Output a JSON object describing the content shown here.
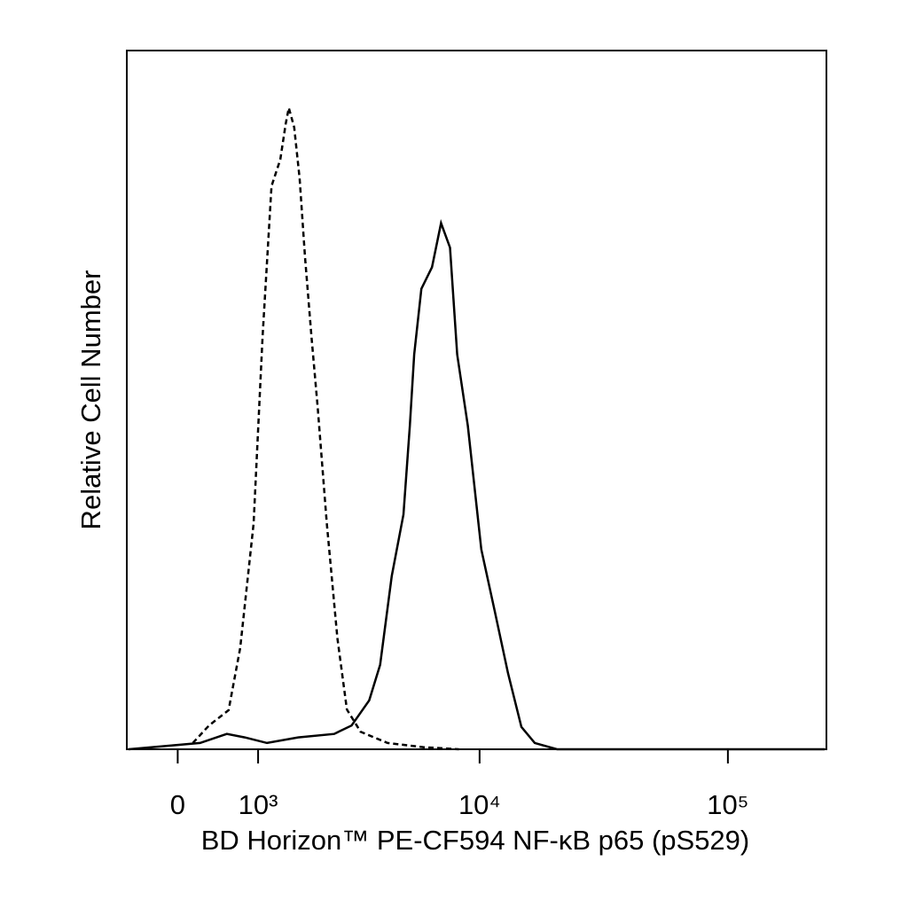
{
  "chart_data": {
    "type": "line",
    "xscale": "biexponential",
    "xlabel": "BD Horizon™ PE-CF594 NF-κB p65 (pS529)",
    "ylabel": "Relative Cell Number",
    "xlim": [
      -600,
      249000
    ],
    "ylim": [
      0,
      100
    ],
    "xticks": [
      0,
      {
        "value": 1000,
        "label": "10³"
      },
      {
        "value": 10000,
        "label": "10⁴"
      },
      {
        "value": 100000,
        "label": "10⁵"
      }
    ],
    "series": [
      {
        "color": "#000000",
        "linestyle": "dashed",
        "x": [
          173,
          360,
          600,
          750,
          935,
          1066,
          1205,
          1349,
          1442,
          1497,
          1595,
          1699,
          1806,
          1940,
          2075,
          2285,
          2550,
          2810,
          3225,
          4195,
          5890,
          8250
        ],
        "values": [
          0.9,
          3.4,
          5.6,
          14.5,
          32.3,
          59.0,
          80.6,
          84.4,
          89.5,
          91.8,
          89.0,
          81.7,
          70.4,
          59.0,
          48.9,
          32.4,
          15.9,
          5.7,
          2.5,
          0.9,
          0.3,
          0
        ]
      },
      {
        "color": "#000000",
        "linestyle": "solid",
        "x": [
          -577,
          255,
          577,
          811,
          1134,
          1669,
          2466,
          2945,
          3509,
          3902,
          4368,
          4883,
          5190,
          5411,
          5792,
          6405,
          6970,
          7583,
          8110,
          8957,
          10160,
          11510,
          13030,
          14760,
          16710,
          20550,
          245000
        ],
        "values": [
          0,
          0.9,
          2.2,
          1.7,
          0.9,
          1.7,
          2.2,
          3.4,
          7.0,
          12.1,
          24.8,
          33.6,
          46.3,
          56.5,
          65.9,
          69.0,
          75.3,
          71.8,
          56.5,
          46.3,
          28.6,
          19.8,
          10.9,
          3.2,
          0.9,
          0,
          0
        ]
      }
    ]
  }
}
